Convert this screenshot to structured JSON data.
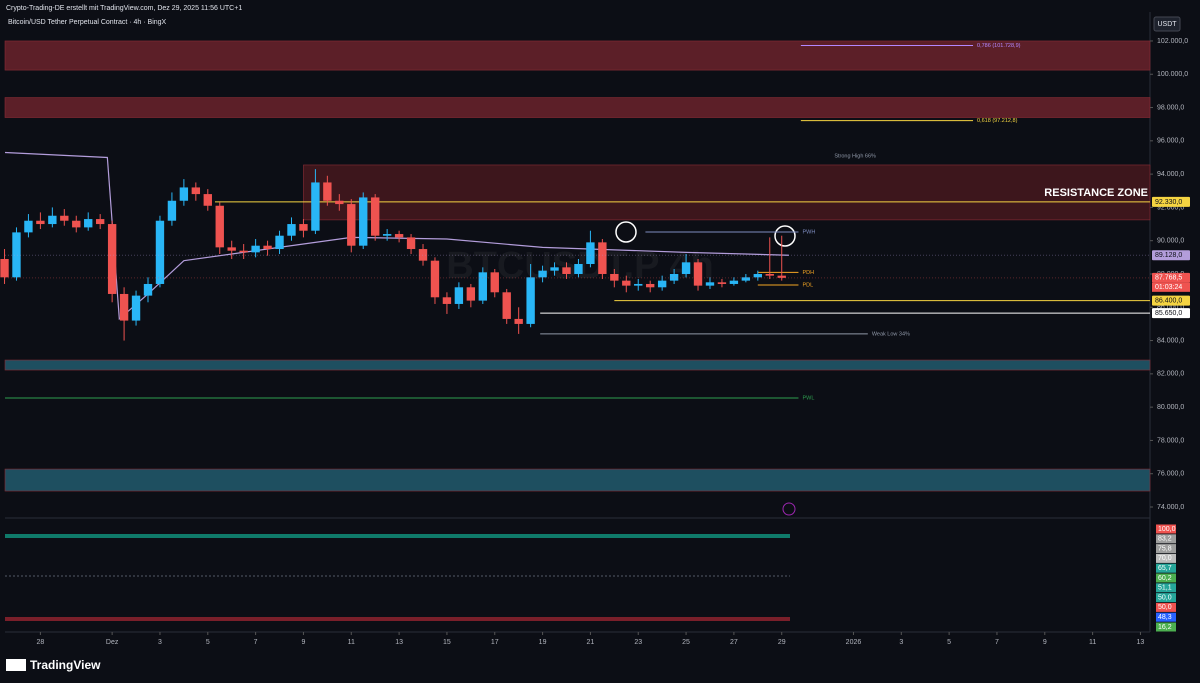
{
  "header": "Crypto-Trading-DE erstellt mit TradingView.com, Dez 29, 2025 11:56 UTC+1",
  "footer": "TradingView",
  "chart_data": {
    "type": "candlestick",
    "title": "Bitcoin/USD Tether Perpetual Contract · 4h · BingX",
    "currency": "USDT",
    "watermark": "BTCUSDT.P 4h",
    "up_color": "#29b6f6",
    "down_color": "#ef5350",
    "x": [
      -4.5,
      -4,
      -3.5,
      -3,
      -2.5,
      -2,
      -1.5,
      -1,
      -0.5,
      0,
      0.5,
      1,
      1.5,
      2,
      2.5,
      3,
      3.5,
      4,
      4.5,
      5,
      5.5,
      6,
      6.5,
      7,
      7.5,
      8,
      8.5,
      9,
      9.5,
      10,
      10.5,
      11,
      11.5,
      12,
      12.5,
      13,
      13.5,
      14,
      14.5,
      15,
      15.5,
      16,
      16.5,
      17,
      17.5,
      18,
      18.5,
      19,
      19.5,
      20,
      20.5,
      21,
      21.5,
      22,
      22.5,
      23,
      23.5,
      24,
      24.5,
      25,
      25.5,
      26,
      26.5,
      27,
      27.5,
      28
    ],
    "open": [
      88900,
      87800,
      90500,
      91200,
      91000,
      91500,
      91200,
      90800,
      91300,
      91000,
      86800,
      85200,
      86700,
      87400,
      91200,
      92400,
      93200,
      92800,
      92100,
      89600,
      89400,
      89300,
      89700,
      89500,
      90300,
      91000,
      90600,
      93500,
      92400,
      92200,
      89700,
      92600,
      90300,
      90400,
      90200,
      89500,
      88800,
      86600,
      86200,
      87200,
      86400,
      88100,
      86900,
      85300,
      85000,
      87800,
      88200,
      88400,
      88000,
      88600,
      89900,
      88000,
      87600,
      87300,
      87400,
      87200,
      87600,
      88000,
      88700,
      87300,
      87500,
      87400,
      87600,
      87800,
      88000,
      87900
    ],
    "high": [
      89500,
      90800,
      91600,
      91700,
      92000,
      91900,
      91500,
      91700,
      91600,
      91200,
      87200,
      87000,
      87800,
      91500,
      92900,
      93700,
      93500,
      93100,
      92300,
      90000,
      89800,
      90100,
      90000,
      90600,
      91400,
      91300,
      94300,
      93900,
      92800,
      92500,
      92900,
      92800,
      90700,
      90600,
      90400,
      89800,
      89000,
      86900,
      87500,
      87400,
      88400,
      88300,
      87100,
      86000,
      88600,
      88500,
      88700,
      88700,
      88900,
      90600,
      90100,
      88300,
      87900,
      87700,
      87600,
      87900,
      88300,
      89200,
      88900,
      87800,
      87700,
      87800,
      88000,
      88200,
      90200,
      90300
    ],
    "low": [
      87400,
      87600,
      90200,
      90700,
      90800,
      90900,
      90500,
      90600,
      90700,
      86300,
      84000,
      84900,
      86300,
      87200,
      90900,
      92100,
      92400,
      91800,
      89200,
      88900,
      88900,
      89000,
      89100,
      89200,
      90000,
      90200,
      90400,
      92100,
      91800,
      89300,
      89500,
      90000,
      90000,
      89900,
      89200,
      88500,
      86200,
      85600,
      85900,
      86000,
      86200,
      86600,
      85000,
      84400,
      84800,
      87500,
      87900,
      87700,
      87800,
      88400,
      87700,
      87200,
      86900,
      87000,
      86900,
      87000,
      87400,
      87800,
      87000,
      87100,
      87200,
      87300,
      87500,
      87600,
      87700,
      87600
    ],
    "close": [
      87800,
      90500,
      91200,
      91000,
      91500,
      91200,
      90800,
      91300,
      91000,
      86800,
      85200,
      86700,
      87400,
      91200,
      92400,
      93200,
      92800,
      92100,
      89600,
      89400,
      89300,
      89700,
      89500,
      90300,
      91000,
      90600,
      93500,
      92400,
      92200,
      89700,
      92600,
      90300,
      90400,
      90200,
      89500,
      88800,
      86600,
      86200,
      87200,
      86400,
      88100,
      86900,
      85300,
      85000,
      87800,
      88200,
      88400,
      88000,
      88600,
      89900,
      88000,
      87600,
      87300,
      87400,
      87200,
      87600,
      88000,
      88700,
      87300,
      87500,
      87400,
      87600,
      87800,
      88000,
      87900,
      87768.5
    ],
    "vwap": {
      "color": "#b39ddb",
      "x": [
        -4.48,
        -0.2,
        0.3,
        1.5,
        3,
        5,
        8,
        10,
        14,
        18,
        24,
        28.3
      ],
      "values": [
        95300,
        95000,
        85300,
        86800,
        88800,
        89200,
        89800,
        90200,
        90100,
        89600,
        89300,
        89128
      ]
    },
    "xlim": [
      -4.48,
      43.4
    ],
    "ylim": [
      73520,
      103560
    ],
    "xticks": [
      {
        "value": -3,
        "label": "28"
      },
      {
        "value": 0,
        "label": "Dez"
      },
      {
        "value": 2,
        "label": "3"
      },
      {
        "value": 4,
        "label": "5"
      },
      {
        "value": 6,
        "label": "7"
      },
      {
        "value": 8,
        "label": "9"
      },
      {
        "value": 10,
        "label": "11"
      },
      {
        "value": 12,
        "label": "13"
      },
      {
        "value": 14,
        "label": "15"
      },
      {
        "value": 16,
        "label": "17"
      },
      {
        "value": 18,
        "label": "19"
      },
      {
        "value": 20,
        "label": "21"
      },
      {
        "value": 22,
        "label": "23"
      },
      {
        "value": 24,
        "label": "25"
      },
      {
        "value": 26,
        "label": "27"
      },
      {
        "value": 28,
        "label": "29"
      },
      {
        "value": 31,
        "label": "2026"
      },
      {
        "value": 33,
        "label": "3"
      },
      {
        "value": 35,
        "label": "5"
      },
      {
        "value": 37,
        "label": "7"
      },
      {
        "value": 39,
        "label": "9"
      },
      {
        "value": 41,
        "label": "11"
      },
      {
        "value": 43,
        "label": "13"
      }
    ],
    "yticks": [
      {
        "value": 74000,
        "label": "74.000,0"
      },
      {
        "value": 76000,
        "label": "76.000,0"
      },
      {
        "value": 78000,
        "label": "78.000,0"
      },
      {
        "value": 80000,
        "label": "80.000,0"
      },
      {
        "value": 82000,
        "label": "82.000,0"
      },
      {
        "value": 84000,
        "label": "84.000,0"
      },
      {
        "value": 86000,
        "label": "86.000,0"
      },
      {
        "value": 88000,
        "label": "88.000,0"
      },
      {
        "value": 90000,
        "label": "90.000,0"
      },
      {
        "value": 92000,
        "label": "92.000,0"
      },
      {
        "value": 94000,
        "label": "94.000,0"
      },
      {
        "value": 96000,
        "label": "96.000,0"
      },
      {
        "value": 98000,
        "label": "98.000,0"
      },
      {
        "value": 100000,
        "label": "100.000,0"
      },
      {
        "value": 102000,
        "label": "102.000,0"
      }
    ],
    "zones": [
      {
        "range": [
          100250,
          102000
        ],
        "x_start": -4.48,
        "color": "#5c1f28"
      },
      {
        "range": [
          97400,
          98600
        ],
        "x_start": -4.48,
        "color": "#5c1f28"
      },
      {
        "range": [
          91250,
          94550
        ],
        "x_start": 8,
        "color": "#3d161c",
        "label": "RESISTANCE ZONE"
      },
      {
        "range": [
          82230,
          82830
        ],
        "x_start": -4.48,
        "color": "#1e4f60"
      },
      {
        "range": [
          74960,
          76280
        ],
        "x_start": -4.48,
        "color": "#1e4f60"
      }
    ],
    "levels": [
      {
        "value": 101728.9,
        "label": "0,786 (101.728,9)",
        "color": "#b388ff",
        "x_start": 28.8,
        "x_end": 36
      },
      {
        "value": 97212.8,
        "label": "0,618 (97.212,8)",
        "color": "#f5d442",
        "x_start": 28.8,
        "x_end": 36
      },
      {
        "value": 92330,
        "tag": "92.330,0",
        "color": "#f5d442",
        "x_start": 4.3,
        "x_end": 43.4
      },
      {
        "value": 90520,
        "label": "PWH",
        "color": "#7e8cc0",
        "x_start": 22.3,
        "x_end": 28.7
      },
      {
        "value": 88100,
        "label": "PDH",
        "color": "#f5a623",
        "x_start": 27,
        "x_end": 28.7
      },
      {
        "value": 87340,
        "label": "PDL",
        "color": "#f5a623",
        "x_start": 27,
        "x_end": 28.7
      },
      {
        "value": 86400,
        "tag": "86.400,0",
        "color": "#f5d442",
        "x_start": 21,
        "x_end": 43.4
      },
      {
        "value": 85650,
        "tag": "85.650,0",
        "color": "#ffffff",
        "x_start": 17.9,
        "x_end": 43.4
      },
      {
        "value": 84400,
        "label": "Weak Low 34%",
        "color": "#9098a8",
        "x_start": 17.9,
        "x_end": 31.6
      },
      {
        "value": 80550,
        "label": "PWL",
        "color": "#2e9d4e",
        "x_start": -4.48,
        "x_end": 28.7
      }
    ],
    "notes": [
      {
        "text": "Strong High 66%",
        "x": 30.2,
        "value": 95090
      }
    ],
    "tags": [
      {
        "value": 89128,
        "label": "89.128,0",
        "color": "#b39ddb",
        "text": "#0c0e15"
      },
      {
        "value": 87768.5,
        "label": "87.768,5",
        "color": "#ef5350",
        "text": "#ffffff"
      }
    ],
    "countdown": "01:03:24",
    "oscillator_tags": [
      {
        "label": "100,0",
        "color": "#ef5350"
      },
      {
        "label": "83,2",
        "color": "#9e9e9e"
      },
      {
        "label": "75,8",
        "color": "#9e9e9e"
      },
      {
        "label": "70,0",
        "color": "#bdbdbd"
      },
      {
        "label": "65,7",
        "color": "#26a69a"
      },
      {
        "label": "60,2",
        "color": "#4caf50"
      },
      {
        "label": "51,1",
        "color": "#26a69a"
      },
      {
        "label": "50,0",
        "color": "#26a69a"
      },
      {
        "label": "50,0",
        "color": "#ef5350"
      },
      {
        "label": "48,3",
        "color": "#2962ff"
      },
      {
        "label": "16,2",
        "color": "#4caf50"
      }
    ]
  }
}
